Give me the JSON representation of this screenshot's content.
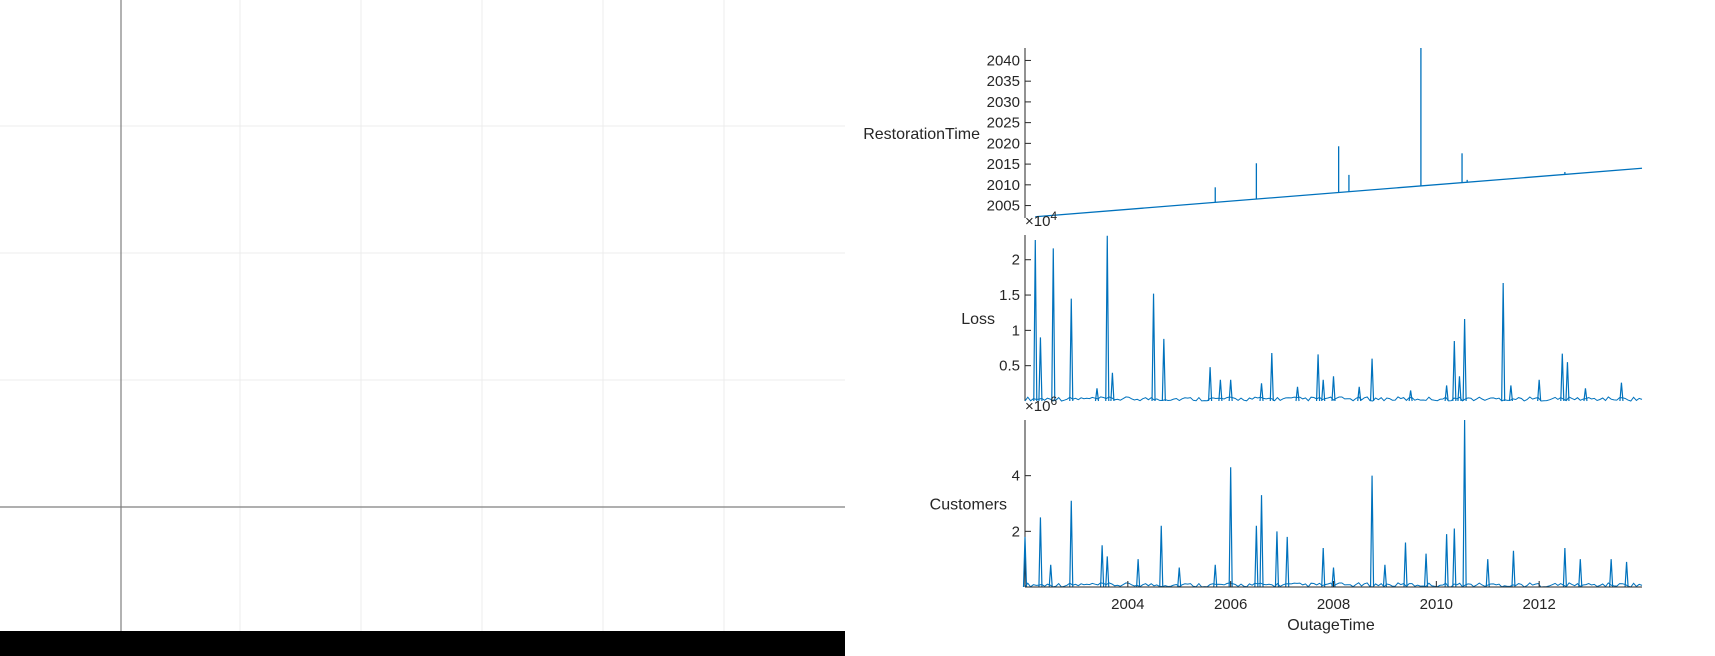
{
  "colors": {
    "series": "#0072BD",
    "axis": "#262626",
    "grid": "#ececec",
    "crosshair": "#7f7f7f",
    "bottom_bar": "#000000"
  },
  "chart_data": {
    "type": "stackedplot",
    "x": {
      "label": "OutageTime",
      "range": [
        2002.0,
        2014.0
      ],
      "ticks": [
        2004,
        2006,
        2008,
        2010,
        2012
      ],
      "tick_labels": [
        "2004",
        "2006",
        "2008",
        "2010",
        "2012"
      ]
    },
    "panels": [
      {
        "name": "RestorationTime",
        "label": "RestorationTime",
        "yrange": [
          2002.0,
          2043.0
        ],
        "yticks": [
          2005,
          2010,
          2015,
          2020,
          2025,
          2030,
          2035,
          2040
        ],
        "ytick_labels": [
          "2005",
          "2010",
          "2015",
          "2020",
          "2025",
          "2030",
          "2035",
          "2040"
        ],
        "exponent": "",
        "baseline": [
          [
            2002.2,
            2002.3
          ],
          [
            2014.0,
            2014.0
          ]
        ],
        "spikes": [
          [
            2005.7,
            2009.4
          ],
          [
            2006.5,
            2015.2
          ],
          [
            2008.1,
            2019.3
          ],
          [
            2008.3,
            2012.4
          ],
          [
            2009.7,
            2043.0
          ],
          [
            2010.5,
            2017.6
          ],
          [
            2010.6,
            2011.2
          ],
          [
            2012.5,
            2013.1
          ]
        ]
      },
      {
        "name": "Loss",
        "label": "Loss",
        "yrange": [
          0,
          23500
        ],
        "yticks": [
          5000,
          10000,
          15000,
          20000
        ],
        "ytick_labels": [
          "0.5",
          "1",
          "1.5",
          "2"
        ],
        "exponent": "4",
        "spikes": [
          [
            2002.2,
            22800
          ],
          [
            2002.3,
            9000
          ],
          [
            2002.55,
            21600
          ],
          [
            2002.9,
            14500
          ],
          [
            2003.4,
            1800
          ],
          [
            2003.6,
            23400
          ],
          [
            2003.7,
            4000
          ],
          [
            2004.5,
            15200
          ],
          [
            2004.7,
            8800
          ],
          [
            2005.6,
            4800
          ],
          [
            2005.8,
            3000
          ],
          [
            2006.0,
            3000
          ],
          [
            2006.6,
            2500
          ],
          [
            2006.8,
            6800
          ],
          [
            2007.3,
            2000
          ],
          [
            2007.7,
            6600
          ],
          [
            2007.8,
            3000
          ],
          [
            2008.0,
            3500
          ],
          [
            2008.5,
            2000
          ],
          [
            2008.75,
            6000
          ],
          [
            2009.5,
            1500
          ],
          [
            2010.2,
            2200
          ],
          [
            2010.35,
            8500
          ],
          [
            2010.45,
            3500
          ],
          [
            2010.55,
            11600
          ],
          [
            2011.3,
            16700
          ],
          [
            2011.45,
            2200
          ],
          [
            2012.0,
            3000
          ],
          [
            2012.45,
            6700
          ],
          [
            2012.55,
            5500
          ],
          [
            2012.9,
            1800
          ],
          [
            2013.6,
            2600
          ]
        ]
      },
      {
        "name": "Customers",
        "label": "Customers",
        "yrange": [
          0,
          6000000
        ],
        "yticks": [
          2000000,
          4000000
        ],
        "ytick_labels": [
          "2",
          "4"
        ],
        "exponent": "6",
        "spikes": [
          [
            2002.0,
            1800000
          ],
          [
            2002.3,
            2500000
          ],
          [
            2002.5,
            800000
          ],
          [
            2002.9,
            3100000
          ],
          [
            2003.5,
            1500000
          ],
          [
            2003.6,
            1100000
          ],
          [
            2004.2,
            1000000
          ],
          [
            2004.65,
            2200000
          ],
          [
            2005.0,
            700000
          ],
          [
            2005.7,
            800000
          ],
          [
            2006.0,
            4300000
          ],
          [
            2006.5,
            2200000
          ],
          [
            2006.6,
            3300000
          ],
          [
            2006.9,
            2000000
          ],
          [
            2007.1,
            1800000
          ],
          [
            2007.8,
            1400000
          ],
          [
            2008.0,
            700000
          ],
          [
            2008.75,
            4000000
          ],
          [
            2009.0,
            800000
          ],
          [
            2009.4,
            1600000
          ],
          [
            2009.8,
            1200000
          ],
          [
            2010.2,
            1900000
          ],
          [
            2010.35,
            2100000
          ],
          [
            2010.55,
            6000000
          ],
          [
            2011.0,
            1000000
          ],
          [
            2011.5,
            1300000
          ],
          [
            2012.5,
            1400000
          ],
          [
            2012.8,
            1000000
          ],
          [
            2013.4,
            1000000
          ],
          [
            2013.7,
            900000
          ]
        ]
      }
    ]
  }
}
